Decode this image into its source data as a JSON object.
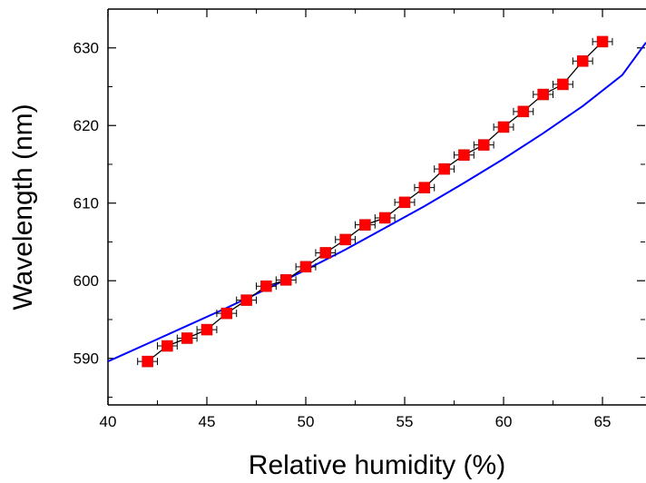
{
  "chart_data": {
    "type": "scatter",
    "xlabel": "Relative humidity (%)",
    "ylabel": "Wavelength (nm)",
    "xlim": [
      40,
      67.2
    ],
    "ylim": [
      584,
      635
    ],
    "x_ticks": [
      40,
      45,
      50,
      55,
      60,
      65
    ],
    "y_ticks": [
      590,
      600,
      610,
      620,
      630
    ],
    "grid": false,
    "legend": "none",
    "series": [
      {
        "type": "scatter-line",
        "marker": "square",
        "color": "#ff0000",
        "line_color": "#000000",
        "x_error": 0.5,
        "x": [
          42,
          43,
          44,
          45,
          46,
          47,
          48,
          49,
          50,
          51,
          52,
          53,
          54,
          55,
          56,
          57,
          58,
          59,
          60,
          61,
          62,
          63,
          64,
          65
        ],
        "y": [
          589.6,
          591.6,
          592.6,
          593.7,
          595.8,
          597.5,
          599.3,
          600.1,
          601.8,
          603.6,
          605.3,
          607.2,
          608.1,
          610.1,
          612.0,
          614.4,
          616.2,
          617.5,
          619.8,
          621.8,
          624.0,
          625.3,
          628.3,
          630.8
        ]
      },
      {
        "type": "line",
        "color": "#0000ff",
        "x": [
          40,
          42,
          44,
          46,
          48,
          50,
          52,
          54,
          56,
          58,
          60,
          62,
          64,
          66,
          67.2
        ],
        "y": [
          589.6,
          591.9,
          594.2,
          596.5,
          598.9,
          601.4,
          604.0,
          606.8,
          609.6,
          612.6,
          615.7,
          619.0,
          622.5,
          626.5,
          630.7
        ]
      }
    ]
  }
}
